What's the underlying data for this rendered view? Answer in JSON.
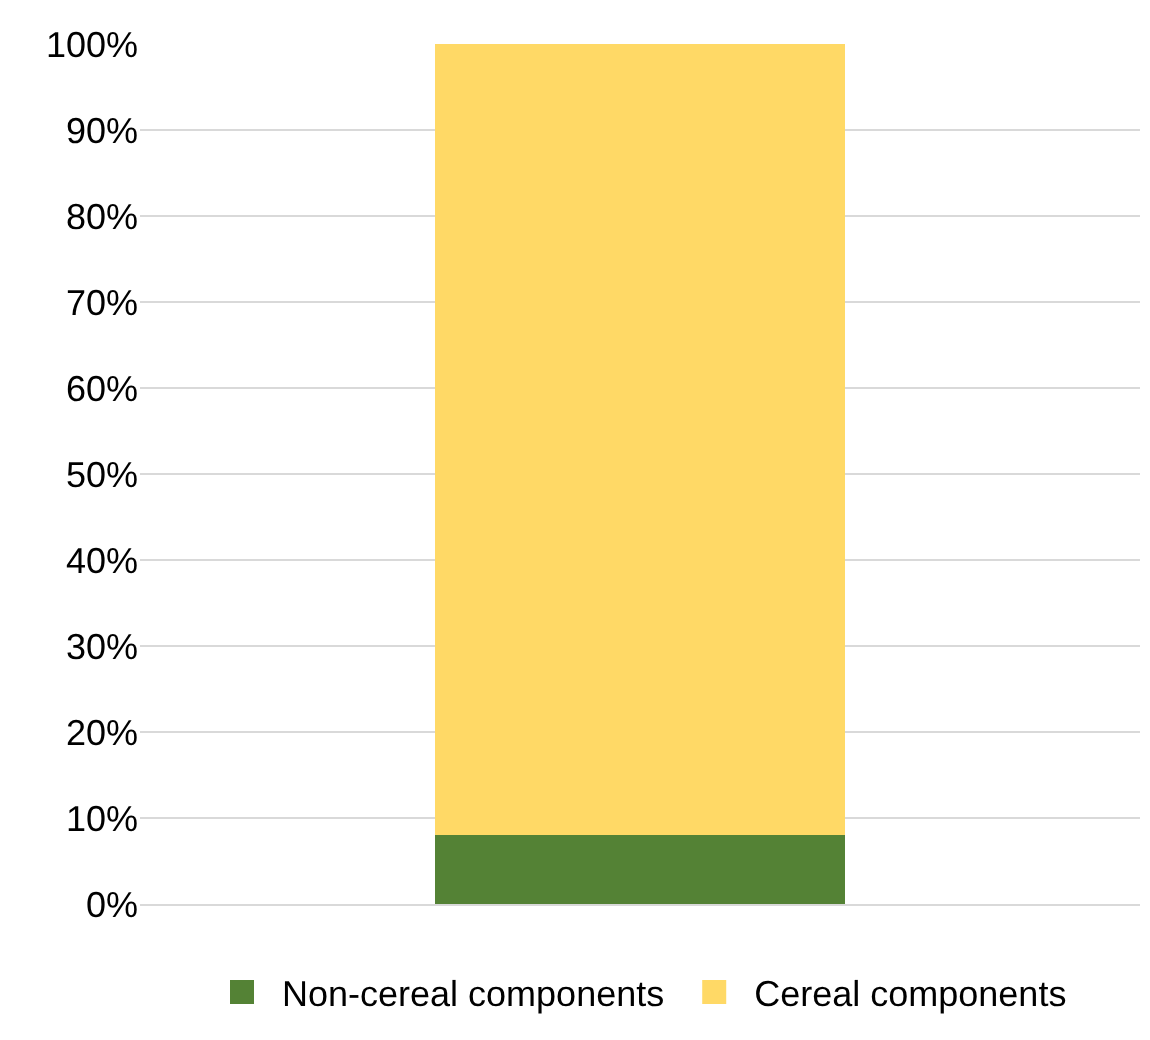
{
  "chart_data": {
    "type": "bar",
    "stacked": true,
    "categories": [
      null
    ],
    "series": [
      {
        "name": "Non-cereal components",
        "color": "#548235",
        "values": [
          8
        ]
      },
      {
        "name": "Cereal components",
        "color": "#ffd966",
        "values": [
          92
        ]
      }
    ],
    "ylim": [
      0,
      100
    ],
    "yticks": [
      {
        "value": 0,
        "label": "0%"
      },
      {
        "value": 10,
        "label": "10%"
      },
      {
        "value": 20,
        "label": "20%"
      },
      {
        "value": 30,
        "label": "30%"
      },
      {
        "value": 40,
        "label": "40%"
      },
      {
        "value": 50,
        "label": "50%"
      },
      {
        "value": 60,
        "label": "60%"
      },
      {
        "value": 70,
        "label": "70%"
      },
      {
        "value": 80,
        "label": "80%"
      },
      {
        "value": 90,
        "label": "90%"
      },
      {
        "value": 100,
        "label": "100%"
      }
    ],
    "grid": "y",
    "legend": "bottom"
  }
}
